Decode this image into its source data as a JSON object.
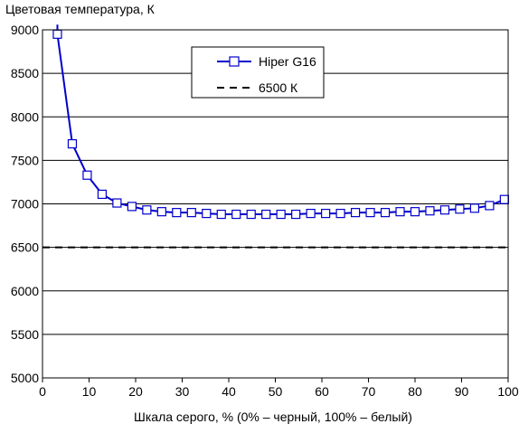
{
  "chart_data": {
    "type": "line",
    "title": "",
    "ylabel": "Цветовая температура, К",
    "xlabel": "Шкала серого, % (0% – черный, 100% – белый)",
    "xlim": [
      0,
      100
    ],
    "ylim": [
      5000,
      9000
    ],
    "x_ticks": [
      "0",
      "10",
      "20",
      "30",
      "40",
      "50",
      "60",
      "70",
      "80",
      "90",
      "100"
    ],
    "y_ticks": [
      "5000",
      "5500",
      "6000",
      "6500",
      "7000",
      "7500",
      "8000",
      "8500",
      "9000"
    ],
    "grid": "horizontal",
    "legend_position": "top-center",
    "series": [
      {
        "name": "Hiper G16",
        "color": "#0000cc",
        "marker": "square-open",
        "line_start": [
          3.2,
          9060
        ],
        "x": [
          3.2,
          6.4,
          9.6,
          12.8,
          16,
          19.2,
          22.4,
          25.6,
          28.8,
          32,
          35.2,
          38.4,
          41.6,
          44.8,
          48,
          51.2,
          54.4,
          57.6,
          60.8,
          64,
          67.2,
          70.4,
          73.6,
          76.8,
          80,
          83.2,
          86.4,
          89.6,
          92.8,
          96,
          99.2
        ],
        "values": [
          8950,
          7690,
          7330,
          7110,
          7010,
          6970,
          6930,
          6910,
          6900,
          6900,
          6890,
          6880,
          6880,
          6880,
          6880,
          6880,
          6880,
          6890,
          6890,
          6890,
          6900,
          6900,
          6900,
          6910,
          6910,
          6920,
          6930,
          6940,
          6950,
          6980,
          7050
        ]
      },
      {
        "name": "6500 К",
        "color": "#000000",
        "dash": "dashed",
        "x": [
          0,
          100
        ],
        "values": [
          6500,
          6500
        ]
      }
    ]
  }
}
